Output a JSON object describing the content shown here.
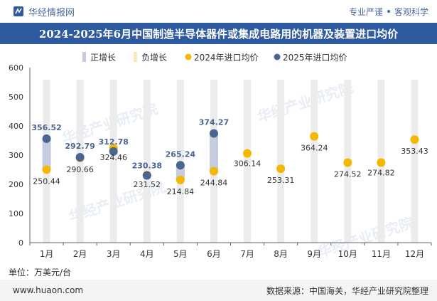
{
  "header": {
    "brand": "华经情报网",
    "tagline_left": "专业严谨",
    "tagline_right": "客观科学"
  },
  "title": "2024-2025年6月中国制造半导体器件或集成电路用的机器及装置进口均价",
  "unit_label": "单位：万美元/台",
  "footer": {
    "website": "www.huaon.com",
    "source": "数据来源：中国海关，华经产业研究院整理"
  },
  "watermark": "华经产业研究院",
  "colors": {
    "title_bg": "#2e5aa0",
    "positive_bar": "#c5cce0",
    "negative_bar": "#fbe8b8",
    "series_2024": "#f5b800",
    "series_2025": "#4a6592",
    "column_bg": "#ececec"
  },
  "chart_data": {
    "type": "dot-range",
    "categories": [
      "1月",
      "2月",
      "3月",
      "4月",
      "5月",
      "6月",
      "7月",
      "8月",
      "9月",
      "10月",
      "11月",
      "12月"
    ],
    "ylim": [
      0,
      600
    ],
    "yticks": [
      0,
      100,
      200,
      300,
      400,
      500,
      600
    ],
    "legend": [
      "正增长",
      "负增长",
      "2024年进口均价",
      "2025年进口均价"
    ],
    "legend_position": "top",
    "series": [
      {
        "name": "2024年进口均价",
        "values": [
          250.44,
          290.66,
          324.46,
          231.52,
          214.84,
          244.84,
          306.14,
          253.31,
          364.24,
          274.52,
          274.82,
          353.43
        ]
      },
      {
        "name": "2025年进口均价",
        "values": [
          356.52,
          292.79,
          312.78,
          230.38,
          265.24,
          374.27,
          null,
          null,
          null,
          null,
          null,
          null
        ]
      }
    ]
  }
}
